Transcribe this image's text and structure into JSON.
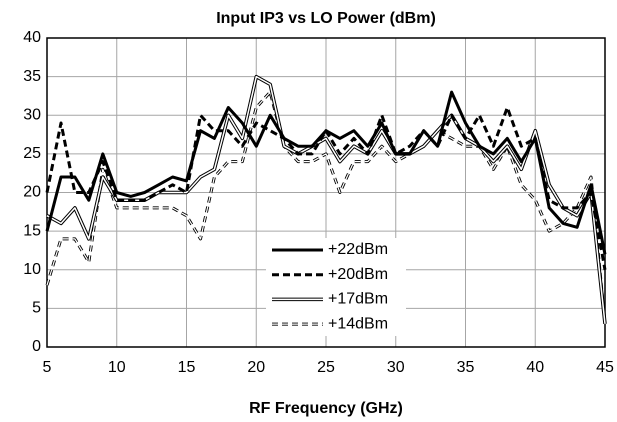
{
  "chart_data": {
    "type": "line",
    "title": "Input IP3 vs LO Power (dBm)",
    "x_label": "RF Frequency  (GHz)",
    "x": [
      5,
      6,
      7,
      8,
      9,
      10,
      11,
      12,
      13,
      14,
      15,
      16,
      17,
      18,
      19,
      20,
      21,
      22,
      23,
      24,
      25,
      26,
      27,
      28,
      29,
      30,
      31,
      32,
      33,
      34,
      35,
      36,
      37,
      38,
      39,
      40,
      41,
      42,
      43,
      44,
      45
    ],
    "series": [
      {
        "name": "+22dBm",
        "color": "#000000",
        "line_style": "solid",
        "values": [
          15,
          22,
          22,
          19,
          25,
          20,
          19.5,
          20,
          21,
          22,
          21.5,
          28,
          27,
          31,
          29,
          26,
          30,
          27,
          26,
          26,
          28,
          27,
          28,
          26,
          29,
          25,
          25,
          28,
          26,
          33,
          29,
          26,
          25,
          27,
          24,
          27,
          18,
          16,
          15.5,
          21,
          12
        ]
      },
      {
        "name": "+20dBm",
        "color": "#000000",
        "line_style": "dashed",
        "values": [
          20,
          29,
          20,
          20,
          24,
          19,
          19,
          19,
          20,
          21,
          20,
          30,
          28,
          28,
          26,
          29,
          28,
          27,
          25,
          25,
          28,
          25,
          27,
          25,
          30,
          25,
          26,
          28,
          26,
          30,
          27,
          30,
          26,
          31,
          26,
          27,
          19,
          18,
          18,
          20,
          10
        ]
      },
      {
        "name": "+17dBm",
        "color": "#000000",
        "line_style": "double",
        "values": [
          17,
          16,
          18,
          14,
          22,
          19,
          19,
          19,
          20,
          20,
          20,
          22,
          23,
          30,
          27,
          35,
          34,
          26,
          25,
          26,
          27,
          24,
          26,
          25,
          28,
          25,
          25,
          26,
          28,
          30,
          27,
          26,
          24,
          26,
          23,
          28,
          21,
          18,
          17,
          20,
          3
        ]
      },
      {
        "name": "+14dBm",
        "color": "#000000",
        "line_style": "double-dashed",
        "values": [
          8,
          14,
          14,
          11,
          23,
          18,
          18,
          18,
          18,
          18,
          17,
          14,
          22,
          24,
          24,
          31,
          33,
          26,
          24,
          24,
          25,
          20,
          24,
          24,
          26,
          24,
          25,
          26,
          28,
          27,
          26,
          26,
          23,
          26,
          21,
          19,
          15,
          16,
          18,
          22,
          3
        ]
      }
    ],
    "xlim": [
      5,
      45
    ],
    "xticks": [
      5,
      10,
      15,
      20,
      25,
      30,
      35,
      40,
      45
    ],
    "ylim": [
      0,
      40
    ],
    "yticks": [
      0,
      5,
      10,
      15,
      20,
      25,
      30,
      35,
      40
    ],
    "grid": true
  }
}
